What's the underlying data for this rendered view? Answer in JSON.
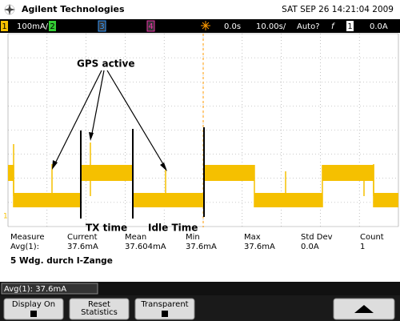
{
  "header": {
    "brand": "Agilent Technologies",
    "datetime": "SAT SEP 26 14:21:04 2009"
  },
  "status_bar": {
    "ch1": "1",
    "ch1_scale": "100mA/",
    "ch2": "2",
    "ch3": "3",
    "ch4": "4",
    "delay": "0.0s",
    "timebase": "10.00s/",
    "mode": "Auto?",
    "slope": "f",
    "trig_source": "1",
    "trig_level": "0.0A"
  },
  "annotations": [
    "GPS active",
    "TX time",
    "Idle Time"
  ],
  "measurements": {
    "headers": [
      "Measure",
      "Current",
      "Mean",
      "Min",
      "Max",
      "Std Dev",
      "Count"
    ],
    "row": [
      "Avg(1):",
      "37.6mA",
      "37.604mA",
      "37.6mA",
      "37.6mA",
      "0.0A",
      "1"
    ]
  },
  "note": "5 Wdg. durch I-Zange",
  "readout": "Avg(1): 37.6mA",
  "softkeys": [
    [
      "Display On"
    ],
    [
      "Reset",
      "Statistics"
    ],
    [
      "Transparent"
    ]
  ]
}
